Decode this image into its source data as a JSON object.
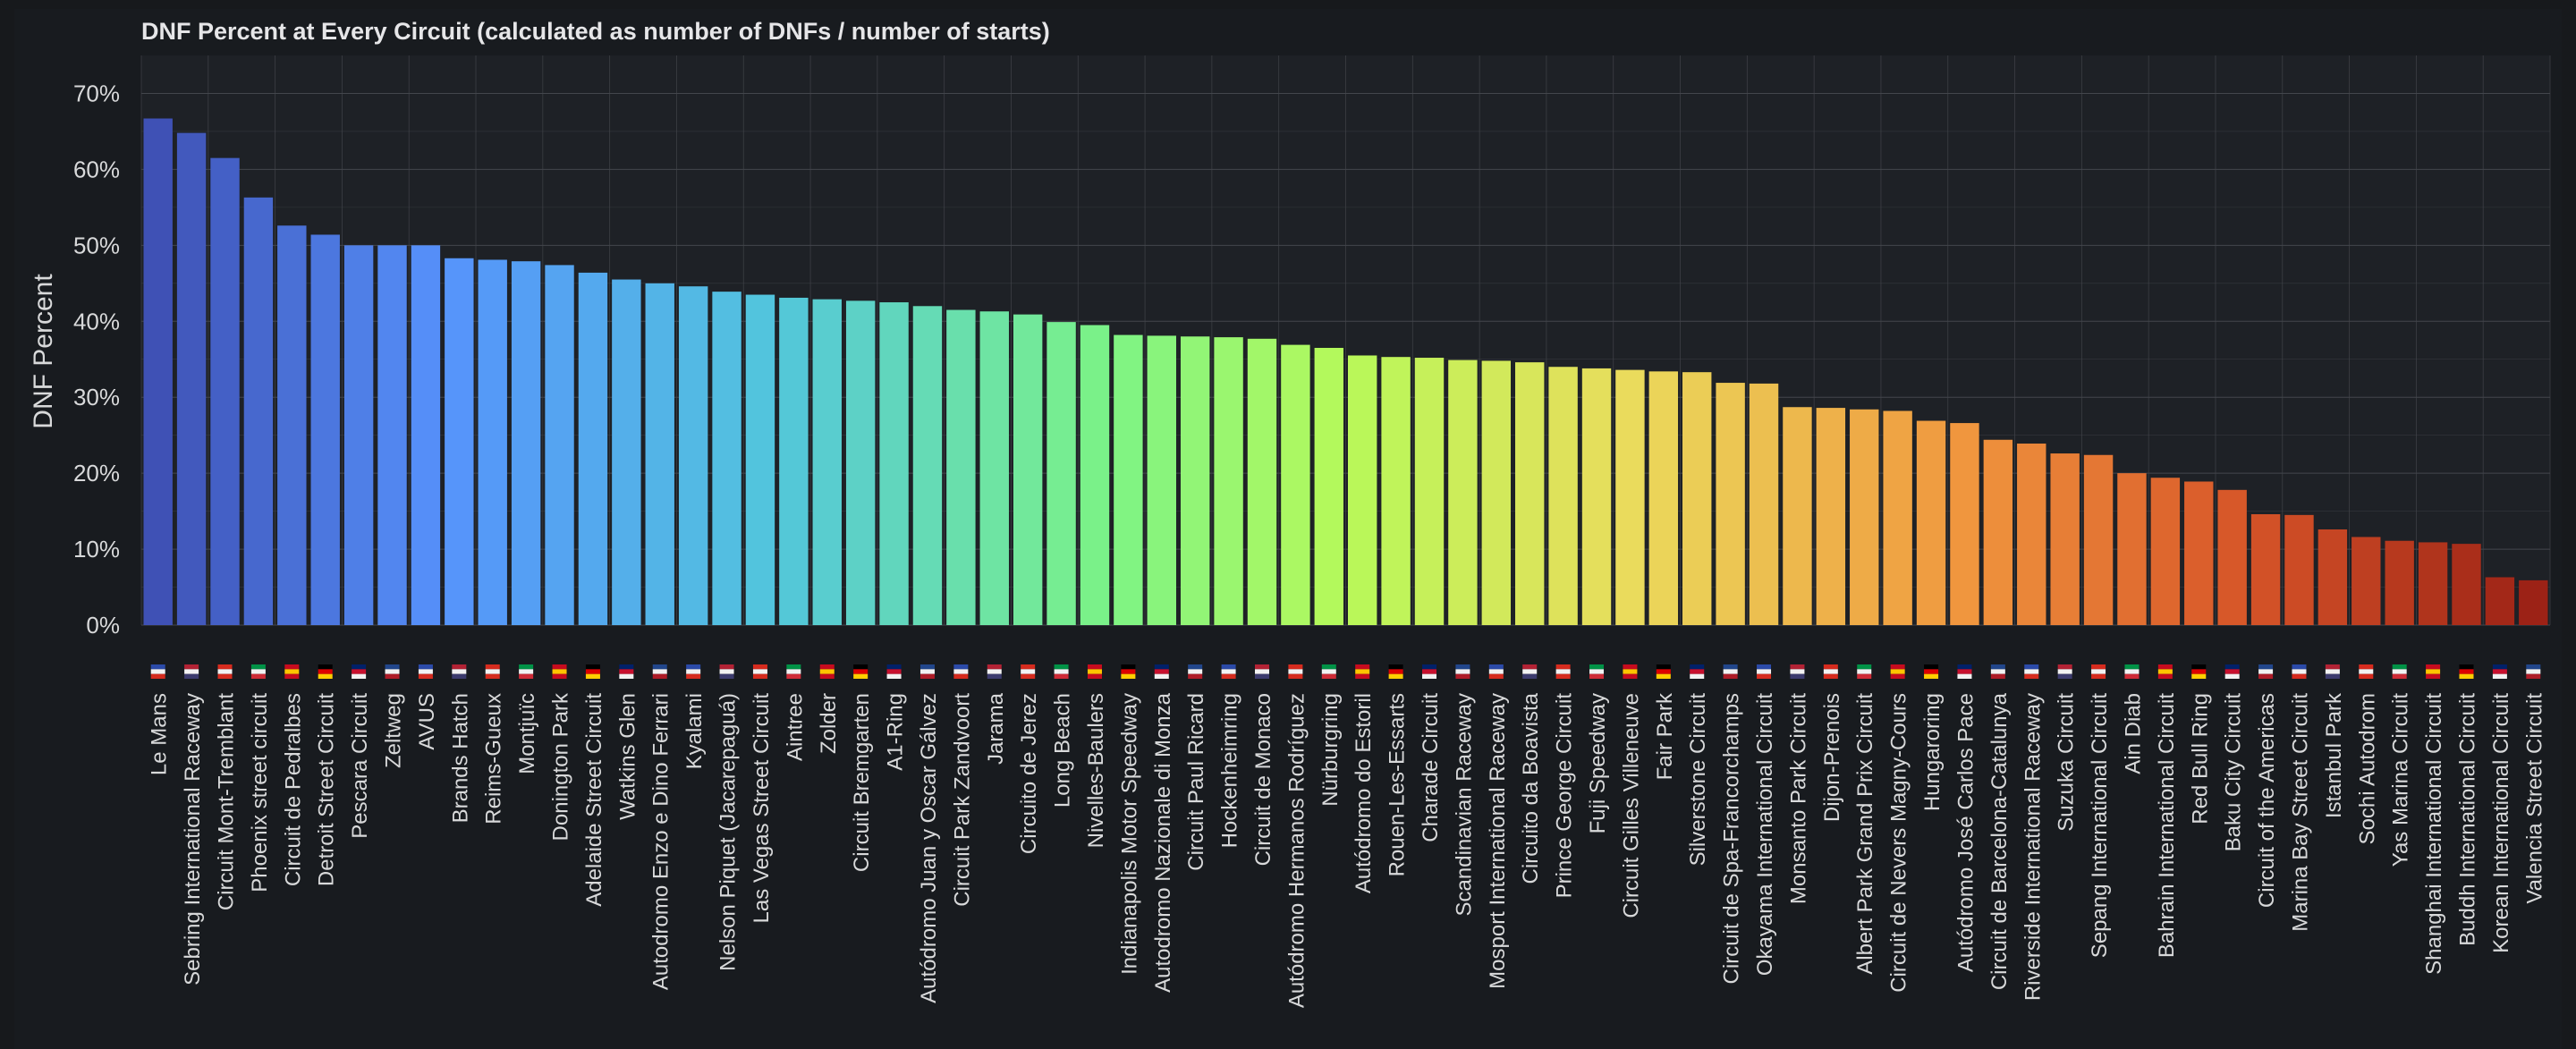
{
  "chart_data": {
    "type": "bar",
    "title": "DNF Percent at Every Circuit (calculated as number of DNFs / number of starts)",
    "ylabel": "DNF Percent",
    "xlabel": "",
    "ylim": [
      0,
      75
    ],
    "yticks": [
      0,
      10,
      20,
      30,
      40,
      50,
      60,
      70
    ],
    "ytick_labels": [
      "0%",
      "10%",
      "20%",
      "30%",
      "40%",
      "50%",
      "60%",
      "70%"
    ],
    "grid": true,
    "legend": "none",
    "categories": [
      "Le Mans",
      "Sebring International Raceway",
      "Circuit Mont-Tremblant",
      "Phoenix street circuit",
      "Circuit de Pedralbes",
      "Detroit Street Circuit",
      "Pescara Circuit",
      "Zeltweg",
      "AVUS",
      "Brands Hatch",
      "Reims-Gueux",
      "Montjuïc",
      "Donington Park",
      "Adelaide Street Circuit",
      "Watkins Glen",
      "Autodromo Enzo e Dino Ferrari",
      "Kyalami",
      "Nelson Piquet (Jacarepaguá)",
      "Las Vegas Street Circuit",
      "Aintree",
      "Zolder",
      "Circuit Bremgarten",
      "A1-Ring",
      "Autódromo Juan y Oscar Gálvez",
      "Circuit Park Zandvoort",
      "Jarama",
      "Circuito de Jerez",
      "Long Beach",
      "Nivelles-Baulers",
      "Indianapolis Motor Speedway",
      "Autodromo Nazionale di Monza",
      "Circuit Paul Ricard",
      "Hockenheimring",
      "Circuit de Monaco",
      "Autódromo Hermanos Rodríguez",
      "Nürburgring",
      "Autódromo do Estoril",
      "Rouen-Les-Essarts",
      "Charade Circuit",
      "Scandinavian Raceway",
      "Mosport International Raceway",
      "Circuito da Boavista",
      "Prince George Circuit",
      "Fuji Speedway",
      "Circuit Gilles Villeneuve",
      "Fair Park",
      "Silverstone Circuit",
      "Circuit de Spa-Francorchamps",
      "Okayama International Circuit",
      "Monsanto Park Circuit",
      "Dijon-Prenois",
      "Albert Park Grand Prix Circuit",
      "Circuit de Nevers Magny-Cours",
      "Hungaroring",
      "Autódromo José Carlos Pace",
      "Circuit de Barcelona-Catalunya",
      "Riverside International Raceway",
      "Suzuka Circuit",
      "Sepang International Circuit",
      "Ain Diab",
      "Bahrain International Circuit",
      "Red Bull Ring",
      "Baku City Circuit",
      "Circuit of the Americas",
      "Marina Bay Street Circuit",
      "Istanbul Park",
      "Sochi Autodrom",
      "Yas Marina Circuit",
      "Shanghai International Circuit",
      "Buddh International Circuit",
      "Korean International Circuit",
      "Valencia Street Circuit"
    ],
    "values": [
      66.7,
      64.8,
      61.5,
      56.3,
      52.6,
      51.4,
      50.0,
      50.0,
      50.0,
      48.3,
      48.1,
      47.9,
      47.4,
      46.4,
      45.5,
      45.0,
      44.6,
      43.9,
      43.5,
      43.1,
      42.9,
      42.7,
      42.5,
      42.0,
      41.5,
      41.3,
      40.9,
      39.9,
      39.5,
      38.2,
      38.1,
      38.0,
      37.9,
      37.7,
      36.9,
      36.5,
      35.5,
      35.3,
      35.2,
      34.9,
      34.8,
      34.6,
      34.0,
      33.8,
      33.6,
      33.4,
      33.3,
      31.9,
      31.8,
      28.7,
      28.6,
      28.4,
      28.2,
      26.9,
      26.6,
      24.4,
      23.9,
      22.6,
      22.4,
      20.0,
      19.4,
      18.9,
      17.8,
      14.6,
      14.5,
      12.6,
      11.6,
      11.1,
      10.9,
      10.7,
      6.3,
      5.9
    ]
  },
  "colors": {
    "background": "#181b1f",
    "plot_bg": "#1e2126",
    "grid": "#43464c",
    "text": "#d8d9da",
    "title": "#e6e6e8",
    "gradient_start": "#3f51b5",
    "gradient_end": "#9e2217"
  }
}
